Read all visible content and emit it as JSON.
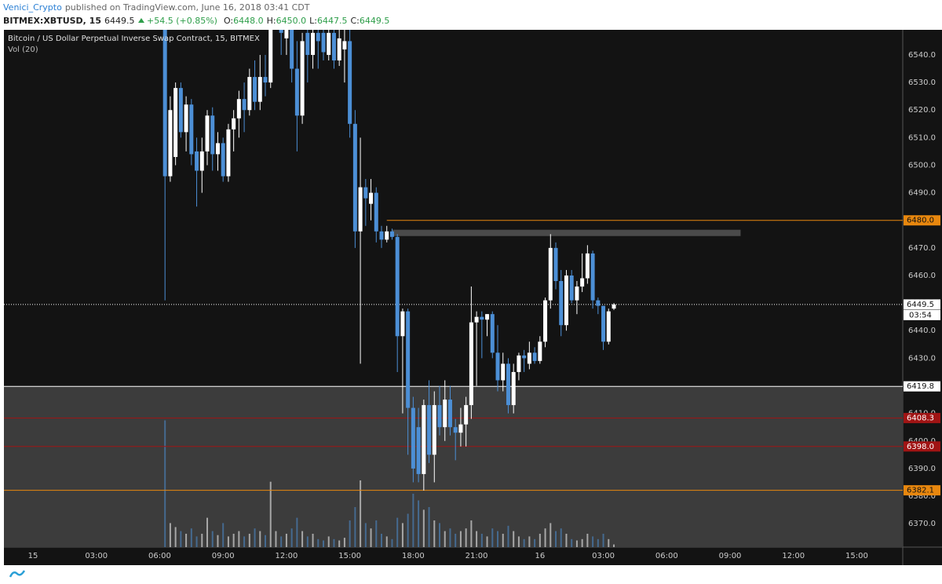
{
  "header": {
    "author": "Venici_Crypto",
    "published": "published on TradingView.com, June 16, 2018 03:41 CDT",
    "symbol": "BITMEX:XBTUSD, 15",
    "last": "6449.5",
    "change": "+54.5 (+0.85%)",
    "ohlc": [
      {
        "label": "O:",
        "value": "6448.0"
      },
      {
        "label": "H:",
        "value": "6450.0"
      },
      {
        "label": "L:",
        "value": "6447.5"
      },
      {
        "label": "C:",
        "value": "6449.5"
      }
    ]
  },
  "chart_data": {
    "type": "candlestick",
    "title": "Bitcoin / US Dollar Perpetual Inverse Swap Contract, 15, BITMEX",
    "volume_label": "Vol (20)",
    "up_color": "#ffffff",
    "down_color": "#4c8fd6",
    "x": [
      25,
      26,
      27,
      28,
      29,
      30,
      31,
      32,
      33,
      34,
      35,
      36,
      37,
      38,
      39,
      40,
      41,
      42,
      43,
      44,
      45,
      46,
      47,
      48,
      49,
      50,
      51,
      52,
      53,
      54,
      55,
      56,
      57,
      58,
      59,
      60,
      61,
      62,
      63,
      64,
      65,
      66,
      67,
      68,
      69,
      70,
      71,
      72,
      73,
      74,
      75,
      76,
      77,
      78,
      79,
      80,
      81,
      82,
      83,
      84,
      85,
      86,
      87,
      88,
      89,
      90,
      91,
      92,
      93,
      94,
      95,
      96,
      97,
      98,
      99,
      100,
      101,
      102,
      103,
      104,
      105,
      106,
      107,
      108,
      109,
      110
    ],
    "open": [
      6550,
      6496,
      6503,
      6528,
      6512,
      6522,
      6505,
      6498,
      6505,
      6518,
      6504,
      6508,
      6496,
      6513,
      6517,
      6524,
      6520,
      6532,
      6523,
      6532,
      6530,
      6555,
      6560,
      6546,
      6555,
      6535,
      6518,
      6548,
      6540,
      6548,
      6548,
      6540,
      6548,
      6538,
      6542,
      6545,
      6515,
      6476,
      6492,
      6486,
      6490,
      6476,
      6473,
      6476,
      6474,
      6438,
      6447,
      6412,
      6405,
      6388,
      6413,
      6395,
      6413,
      6405,
      6415,
      6405,
      6403,
      6406,
      6413,
      6443,
      6445,
      6444,
      6446,
      6432,
      6422,
      6428,
      6413,
      6425,
      6431,
      6428,
      6432,
      6429,
      6436,
      6451,
      6470,
      6458,
      6442,
      6460,
      6451,
      6456,
      6459,
      6468,
      6451,
      6449,
      6436,
      6448
    ],
    "high": [
      6555,
      6525,
      6530,
      6530,
      6525,
      6524,
      6510,
      6510,
      6520,
      6521,
      6512,
      6510,
      6515,
      6520,
      6527,
      6530,
      6535,
      6538,
      6540,
      6540,
      6560,
      6565,
      6565,
      6560,
      6558,
      6545,
      6548,
      6552,
      6552,
      6552,
      6552,
      6555,
      6552,
      6550,
      6550,
      6552,
      6520,
      6510,
      6495,
      6495,
      6492,
      6478,
      6478,
      6477,
      6475,
      6448,
      6448,
      6416,
      6412,
      6415,
      6422,
      6418,
      6420,
      6422,
      6420,
      6408,
      6412,
      6416,
      6456,
      6447,
      6447,
      6446,
      6447,
      6442,
      6432,
      6430,
      6428,
      6432,
      6433,
      6436,
      6434,
      6438,
      6452,
      6475,
      6472,
      6462,
      6462,
      6462,
      6458,
      6468,
      6471,
      6469,
      6452,
      6449,
      6448,
      6450
    ],
    "low": [
      6451,
      6494,
      6500,
      6510,
      6505,
      6500,
      6485,
      6490,
      6500,
      6498,
      6498,
      6494,
      6494,
      6505,
      6510,
      6512,
      6518,
      6520,
      6520,
      6525,
      6528,
      6550,
      6540,
      6540,
      6530,
      6505,
      6515,
      6530,
      6535,
      6535,
      6538,
      6538,
      6535,
      6536,
      6530,
      6510,
      6470,
      6428,
      6478,
      6480,
      6472,
      6470,
      6472,
      6473,
      6425,
      6410,
      6395,
      6385,
      6385,
      6382,
      6392,
      6385,
      6402,
      6400,
      6402,
      6393,
      6398,
      6398,
      6408,
      6420,
      6430,
      6438,
      6430,
      6418,
      6418,
      6410,
      6410,
      6422,
      6425,
      6426,
      6428,
      6428,
      6434,
      6448,
      6455,
      6438,
      6440,
      6450,
      6446,
      6454,
      6457,
      6448,
      6446,
      6433,
      6435,
      6447.5
    ],
    "close": [
      6496,
      6520,
      6528,
      6512,
      6522,
      6504,
      6498,
      6505,
      6518,
      6504,
      6508,
      6496,
      6513,
      6517,
      6524,
      6520,
      6532,
      6523,
      6532,
      6530,
      6555,
      6560,
      6548,
      6555,
      6535,
      6518,
      6545,
      6540,
      6548,
      6545,
      6541,
      6548,
      6538,
      6546,
      6545,
      6515,
      6476,
      6492,
      6488,
      6490,
      6476,
      6473,
      6476,
      6474,
      6438,
      6447,
      6412,
      6390,
      6388,
      6413,
      6395,
      6413,
      6405,
      6415,
      6405,
      6403,
      6406,
      6413,
      6443,
      6445,
      6444,
      6446,
      6432,
      6422,
      6428,
      6413,
      6425,
      6431,
      6430,
      6432,
      6429,
      6436,
      6451,
      6470,
      6458,
      6442,
      6460,
      6451,
      6456,
      6459,
      6468,
      6451,
      6449,
      6436,
      6447,
      6449.5
    ],
    "volume": [
      95,
      18,
      15,
      12,
      10,
      14,
      8,
      10,
      22,
      12,
      9,
      18,
      8,
      10,
      12,
      8,
      10,
      14,
      12,
      9,
      49,
      12,
      8,
      10,
      14,
      22,
      12,
      8,
      10,
      6,
      5,
      8,
      6,
      5,
      7,
      20,
      30,
      50,
      18,
      14,
      20,
      10,
      8,
      6,
      22,
      18,
      25,
      40,
      35,
      28,
      30,
      20,
      18,
      12,
      14,
      10,
      12,
      14,
      20,
      12,
      10,
      8,
      14,
      12,
      10,
      16,
      12,
      8,
      6,
      8,
      6,
      10,
      14,
      18,
      12,
      14,
      10,
      6,
      5,
      6,
      10,
      8,
      6,
      10,
      6,
      2
    ],
    "vlim": [
      0,
      100
    ],
    "xlim": [
      -5.5,
      164.7
    ],
    "xticks": [
      {
        "value": 0,
        "label": "15"
      },
      {
        "value": 12,
        "label": "03:00"
      },
      {
        "value": 24,
        "label": "06:00"
      },
      {
        "value": 36,
        "label": "09:00"
      },
      {
        "value": 48,
        "label": "12:00"
      },
      {
        "value": 60,
        "label": "15:00"
      },
      {
        "value": 72,
        "label": "18:00"
      },
      {
        "value": 84,
        "label": "21:00"
      },
      {
        "value": 96,
        "label": "16"
      },
      {
        "value": 108,
        "label": "03:00"
      },
      {
        "value": 120,
        "label": "06:00"
      },
      {
        "value": 132,
        "label": "09:00"
      },
      {
        "value": 144,
        "label": "12:00"
      },
      {
        "value": 156,
        "label": "15:00"
      }
    ],
    "ylim": [
      6361.5,
      6549.1
    ],
    "yticks": [
      {
        "value": 6370,
        "label": "6370.0"
      },
      {
        "value": 6380,
        "label": "6380.0"
      },
      {
        "value": 6390,
        "label": "6390.0"
      },
      {
        "value": 6400,
        "label": "6400.0"
      },
      {
        "value": 6410,
        "label": "6410.0"
      },
      {
        "value": 6420,
        "label": "6420.0"
      },
      {
        "value": 6430,
        "label": "6430.0"
      },
      {
        "value": 6440,
        "label": "6440.0"
      },
      {
        "value": 6450,
        "label": "6450.0"
      },
      {
        "value": 6460,
        "label": "6460.0"
      },
      {
        "value": 6470,
        "label": "6470.0"
      },
      {
        "value": 6480,
        "label": "6480.0"
      },
      {
        "value": 6490,
        "label": "6490.0"
      },
      {
        "value": 6500,
        "label": "6500.0"
      },
      {
        "value": 6510,
        "label": "6510.0"
      },
      {
        "value": 6520,
        "label": "6520.0"
      },
      {
        "value": 6530,
        "label": "6530.0"
      },
      {
        "value": 6540,
        "label": "6540.0"
      }
    ],
    "levels": [
      {
        "value": 6480,
        "label": "6480.0",
        "color": "#e8870e",
        "from": 67
      },
      {
        "value": 6449.5,
        "color": "#ffffff",
        "style": "dotted",
        "countdown": "03:54"
      },
      {
        "value": 6419.8,
        "color": "#ffffff",
        "fill": "#3c3c3c"
      },
      {
        "value": 6408.3,
        "label": "6408.3",
        "color": "#a01414"
      },
      {
        "value": 6398,
        "label": "6398.0",
        "color": "#a01414"
      },
      {
        "value": 6382.1,
        "label": "6382.1",
        "color": "#e8870e"
      }
    ],
    "box": {
      "x": [
        68,
        134
      ],
      "y": [
        6474.3,
        6476.6
      ],
      "color": "#4a4a4a"
    }
  }
}
